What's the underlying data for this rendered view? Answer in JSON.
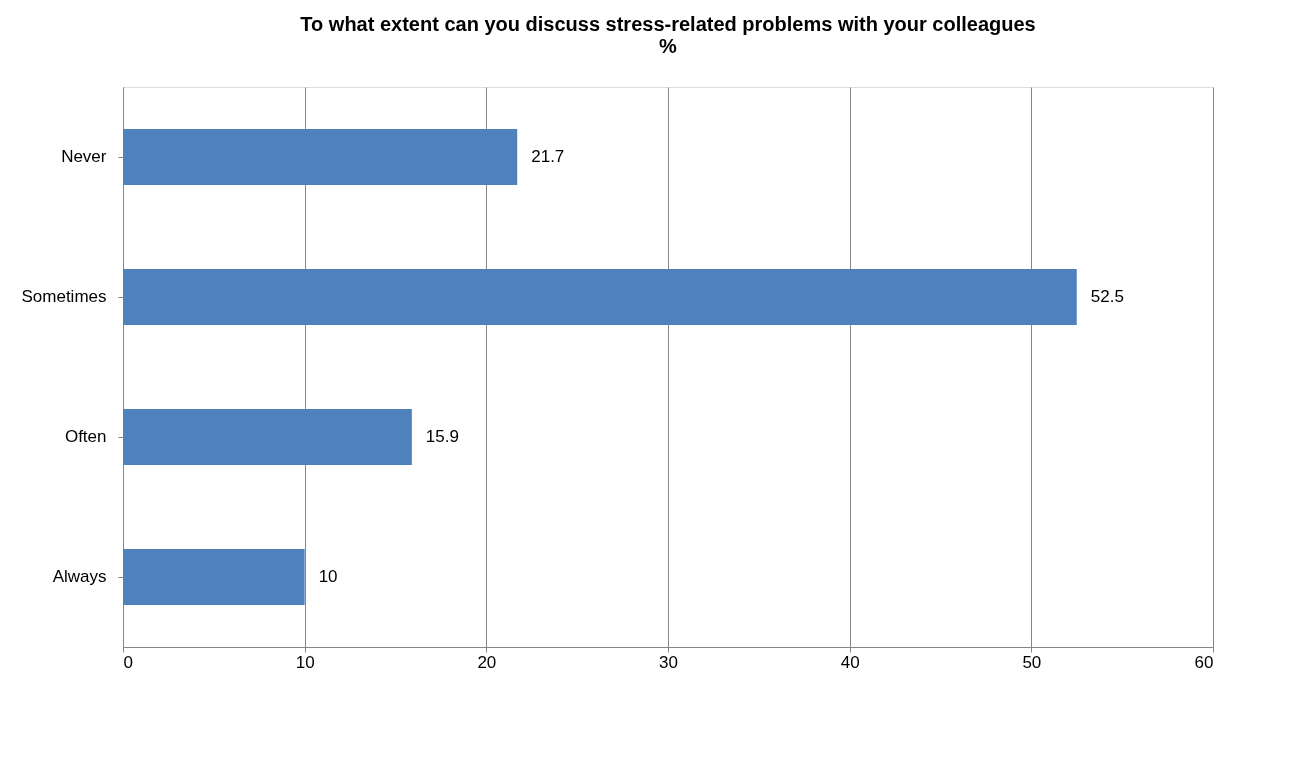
{
  "chart_data": {
    "type": "bar",
    "orientation": "horizontal",
    "title": "To what extent can you discuss stress-related problems with your colleagues\n%",
    "categories": [
      "Never",
      "Sometimes",
      "Often",
      "Always"
    ],
    "values": [
      21.7,
      52.5,
      15.9,
      10
    ],
    "color": "#4f81bd",
    "xlim": [
      0,
      60
    ],
    "xticks": [
      0,
      10,
      20,
      30,
      40,
      50,
      60
    ],
    "grid": "x",
    "data_labels": true
  }
}
